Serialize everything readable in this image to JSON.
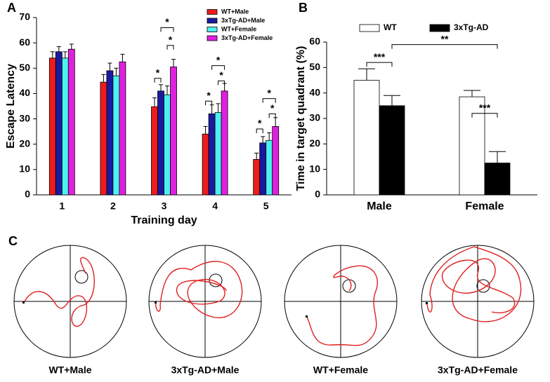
{
  "chart_data": [
    {
      "panel": "A",
      "type": "bar",
      "ylabel": "Escape Latency",
      "xlabel": "Training day",
      "categories": [
        "1",
        "2",
        "3",
        "4",
        "5"
      ],
      "series": [
        {
          "name": "WT+Male",
          "color": "#ee1c1c",
          "values": [
            54,
            44.5,
            34.8,
            24,
            14
          ],
          "errors": [
            2.5,
            3,
            3.5,
            3,
            2.5
          ]
        },
        {
          "name": "3xTg-AD+Male",
          "color": "#1a1aa0",
          "values": [
            56.5,
            49,
            41,
            32,
            20.5
          ],
          "errors": [
            2,
            3,
            2.5,
            3.5,
            2.5
          ]
        },
        {
          "name": "WT+Female",
          "color": "#4ef0f0",
          "values": [
            54,
            47,
            39.5,
            32.5,
            21.5
          ],
          "errors": [
            2.5,
            3,
            3.5,
            3.5,
            3
          ]
        },
        {
          "name": "3xTg-AD+Female",
          "color": "#e020e0",
          "values": [
            57.5,
            52.5,
            50.5,
            41,
            27
          ],
          "errors": [
            2,
            3,
            3,
            3,
            3.5
          ]
        }
      ],
      "ylim": [
        0,
        70
      ],
      "yticks": [
        0,
        10,
        20,
        30,
        40,
        50,
        60,
        70
      ],
      "legend": "upper right",
      "annotations": [
        "*",
        "*",
        "*",
        "*",
        "*",
        "*",
        "*",
        "*",
        "*"
      ]
    },
    {
      "panel": "B",
      "type": "bar",
      "ylabel": "Time in target quadrant (%)",
      "categories": [
        "Male",
        "Female"
      ],
      "series": [
        {
          "name": "WT",
          "color": "#ffffff",
          "values": [
            45,
            38.5
          ],
          "errors": [
            4.5,
            2.5
          ]
        },
        {
          "name": "3xTg-AD",
          "color": "#000000",
          "values": [
            35,
            12.5
          ],
          "errors": [
            4,
            4.5
          ]
        }
      ],
      "ylim": [
        0,
        60
      ],
      "yticks": [
        0,
        10,
        20,
        30,
        40,
        50,
        60
      ],
      "legend": "top",
      "annotations": [
        "***",
        "**",
        "***"
      ]
    }
  ],
  "swim_paths": {
    "panel": "C",
    "labels": [
      "WT+Male",
      "3xTg-AD+Male",
      "WT+Female",
      "3xTg-AD+Female"
    ]
  }
}
